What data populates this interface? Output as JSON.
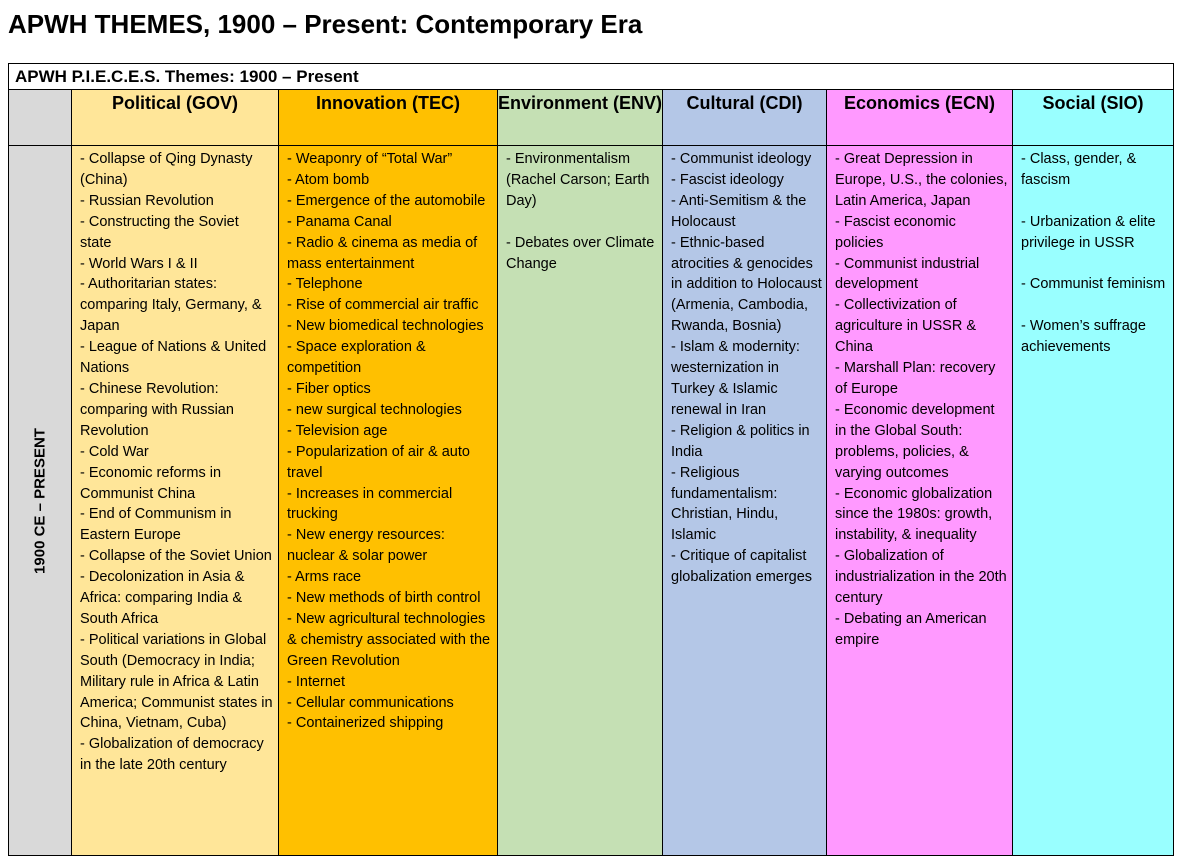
{
  "page_title": "APWH THEMES, 1900 – Present: Contemporary Era",
  "table": {
    "caption": "APWH P.I.E.C.E.S. Themes: 1900 – Present",
    "era_label": "1900 CE – PRESENT",
    "columns": [
      {
        "header": "Political (GOV)",
        "color": "#ffe699",
        "items": [
          "- Collapse of Qing Dynasty (China)",
          "- Russian Revolution",
          "- Constructing the Soviet state",
          "- World Wars I & II",
          "- Authoritarian states: comparing Italy, Germany, & Japan",
          "- League of Nations & United Nations",
          "- Chinese Revolution: comparing with Russian Revolution",
          "- Cold War",
          "- Economic reforms in Communist China",
          "- End of Communism in Eastern Europe",
          "- Collapse of the Soviet Union",
          "- Decolonization in Asia & Africa: comparing India & South Africa",
          "- Political variations in Global South (Democracy in India; Military rule in Africa & Latin America; Communist states in China, Vietnam, Cuba)",
          "- Globalization of democracy in the late 20th century"
        ]
      },
      {
        "header": "Innovation (TEC)",
        "color": "#ffc000",
        "items": [
          "- Weaponry of “Total War”",
          "- Atom bomb",
          "- Emergence of the automobile",
          "- Panama Canal",
          "- Radio & cinema as media of mass entertainment",
          "- Telephone",
          "- Rise of commercial air traffic",
          "- New biomedical technologies",
          "- Space exploration & competition",
          "- Fiber optics",
          "- new surgical technologies",
          "- Television age",
          "- Popularization of air & auto travel",
          "- Increases in commercial trucking",
          "- New energy resources: nuclear & solar power",
          "- Arms race",
          "- New methods of birth control",
          "- New agricultural technologies & chemistry associated with the Green Revolution",
          "- Internet",
          "- Cellular communications",
          "- Containerized shipping"
        ]
      },
      {
        "header": "Environment (ENV)",
        "color": "#c5e0b4",
        "items": [
          "- Environmentalism (Rachel Carson; Earth Day)",
          "- Debates over Climate Change"
        ]
      },
      {
        "header": "Cultural (CDI)",
        "color": "#b4c7e7",
        "items": [
          "- Communist ideology",
          "- Fascist ideology",
          "- Anti-Semitism & the Holocaust",
          "- Ethnic-based atrocities & genocides in addition to Holocaust (Armenia, Cambodia, Rwanda, Bosnia)",
          "- Islam & modernity: westernization in Turkey & Islamic renewal in Iran",
          "- Religion & politics in India",
          "- Religious fundamentalism: Christian, Hindu, Islamic",
          "- Critique of capitalist globalization emerges"
        ]
      },
      {
        "header": "Economics (ECN)",
        "color": "#ff99ff",
        "items": [
          "- Great Depression in Europe, U.S., the colonies, Latin America, Japan",
          "- Fascist economic policies",
          "- Communist industrial development",
          "- Collectivization of agriculture in USSR & China",
          "- Marshall Plan: recovery of Europe",
          "- Economic development in the Global South: problems, policies, & varying outcomes",
          "- Economic globalization since the 1980s: growth, instability, & inequality",
          "- Globalization of industrialization in the 20th century",
          "- Debating an American empire"
        ]
      },
      {
        "header": "Social (SIO)",
        "color": "#99ffff",
        "items": [
          "- Class, gender, & fascism",
          "- Urbanization & elite privilege in USSR",
          "- Communist feminism",
          "- Women’s suffrage achievements"
        ]
      }
    ]
  }
}
